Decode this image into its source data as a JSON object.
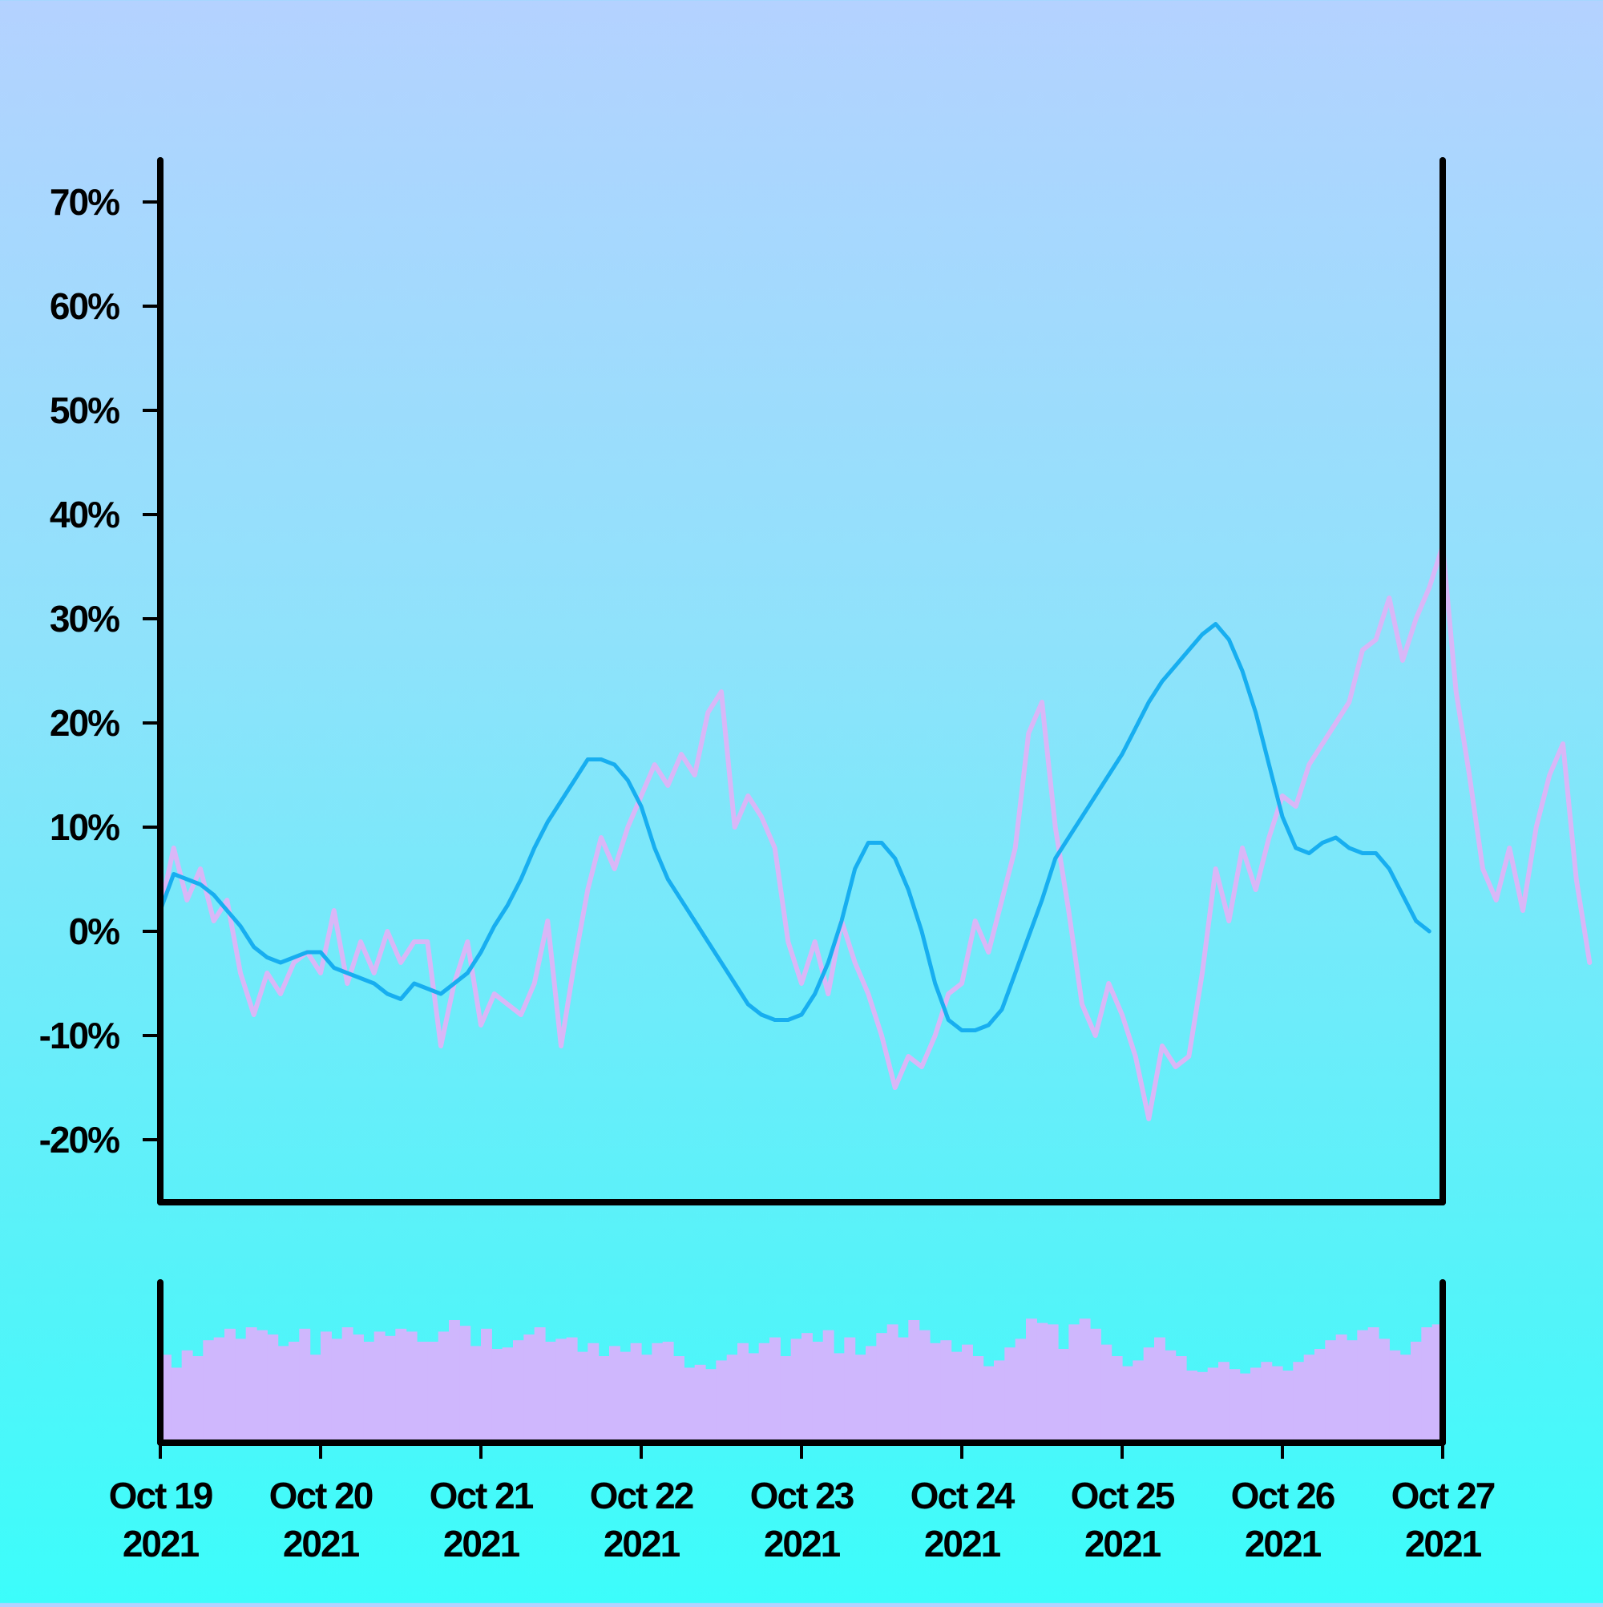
{
  "chart_data": {
    "type": "line",
    "x_start": "2021-10-19",
    "x_end": "2021-10-27",
    "x_tick_labels": [
      [
        "Oct 19",
        "2021"
      ],
      [
        "Oct 20",
        "2021"
      ],
      [
        "Oct 21",
        "2021"
      ],
      [
        "Oct 22",
        "2021"
      ],
      [
        "Oct 23",
        "2021"
      ],
      [
        "Oct 24",
        "2021"
      ],
      [
        "Oct 25",
        "2021"
      ],
      [
        "Oct 26",
        "2021"
      ],
      [
        "Oct 27",
        "2021"
      ]
    ],
    "y_ticks": [
      -20,
      -10,
      0,
      10,
      20,
      30,
      40,
      50,
      60,
      70
    ],
    "y_tick_labels": [
      "-20%",
      "-10%",
      "0%",
      "10%",
      "20%",
      "30%",
      "40%",
      "50%",
      "60%",
      "70%"
    ],
    "ylim": [
      -26,
      74
    ],
    "grid": false,
    "series": [
      {
        "kind": "raw",
        "color": "#d9b7f7",
        "points": [
          [
            "2021-10-19 00:00",
            2
          ],
          [
            "2021-10-19 02:00",
            8
          ],
          [
            "2021-10-19 04:00",
            3
          ],
          [
            "2021-10-19 06:00",
            6
          ],
          [
            "2021-10-19 08:00",
            1
          ],
          [
            "2021-10-19 10:00",
            3
          ],
          [
            "2021-10-19 12:00",
            -4
          ],
          [
            "2021-10-19 14:00",
            -8
          ],
          [
            "2021-10-19 16:00",
            -4
          ],
          [
            "2021-10-19 18:00",
            -6
          ],
          [
            "2021-10-19 20:00",
            -3
          ],
          [
            "2021-10-19 22:00",
            -2
          ],
          [
            "2021-10-20 00:00",
            -4
          ],
          [
            "2021-10-20 02:00",
            2
          ],
          [
            "2021-10-20 04:00",
            -5
          ],
          [
            "2021-10-20 06:00",
            -1
          ],
          [
            "2021-10-20 08:00",
            -4
          ],
          [
            "2021-10-20 10:00",
            0
          ],
          [
            "2021-10-20 12:00",
            -3
          ],
          [
            "2021-10-20 14:00",
            -1
          ],
          [
            "2021-10-20 16:00",
            -1
          ],
          [
            "2021-10-20 18:00",
            -11
          ],
          [
            "2021-10-20 20:00",
            -5
          ],
          [
            "2021-10-20 22:00",
            -1
          ],
          [
            "2021-10-21 00:00",
            -9
          ],
          [
            "2021-10-21 02:00",
            -6
          ],
          [
            "2021-10-21 04:00",
            -7
          ],
          [
            "2021-10-21 06:00",
            -8
          ],
          [
            "2021-10-21 08:00",
            -5
          ],
          [
            "2021-10-21 10:00",
            1
          ],
          [
            "2021-10-21 12:00",
            -11
          ],
          [
            "2021-10-21 14:00",
            -3
          ],
          [
            "2021-10-21 16:00",
            4
          ],
          [
            "2021-10-21 18:00",
            9
          ],
          [
            "2021-10-21 20:00",
            6
          ],
          [
            "2021-10-21 22:00",
            10
          ],
          [
            "2021-10-22 00:00",
            13
          ],
          [
            "2021-10-22 02:00",
            16
          ],
          [
            "2021-10-22 04:00",
            14
          ],
          [
            "2021-10-22 06:00",
            17
          ],
          [
            "2021-10-22 08:00",
            15
          ],
          [
            "2021-10-22 10:00",
            21
          ],
          [
            "2021-10-22 12:00",
            23
          ],
          [
            "2021-10-22 14:00",
            10
          ],
          [
            "2021-10-22 16:00",
            13
          ],
          [
            "2021-10-22 18:00",
            11
          ],
          [
            "2021-10-22 20:00",
            8
          ],
          [
            "2021-10-22 22:00",
            -1
          ],
          [
            "2021-10-23 00:00",
            -5
          ],
          [
            "2021-10-23 02:00",
            -1
          ],
          [
            "2021-10-23 04:00",
            -6
          ],
          [
            "2021-10-23 06:00",
            1
          ],
          [
            "2021-10-23 08:00",
            -3
          ],
          [
            "2021-10-23 10:00",
            -6
          ],
          [
            "2021-10-23 12:00",
            -10
          ],
          [
            "2021-10-23 14:00",
            -15
          ],
          [
            "2021-10-23 16:00",
            -12
          ],
          [
            "2021-10-23 18:00",
            -13
          ],
          [
            "2021-10-23 20:00",
            -10
          ],
          [
            "2021-10-23 22:00",
            -6
          ],
          [
            "2021-10-24 00:00",
            -5
          ],
          [
            "2021-10-24 02:00",
            1
          ],
          [
            "2021-10-24 04:00",
            -2
          ],
          [
            "2021-10-24 06:00",
            3
          ],
          [
            "2021-10-24 08:00",
            8
          ],
          [
            "2021-10-24 10:00",
            19
          ],
          [
            "2021-10-24 12:00",
            22
          ],
          [
            "2021-10-24 14:00",
            10
          ],
          [
            "2021-10-24 16:00",
            2
          ],
          [
            "2021-10-24 18:00",
            -7
          ],
          [
            "2021-10-24 20:00",
            -10
          ],
          [
            "2021-10-24 22:00",
            -5
          ],
          [
            "2021-10-25 00:00",
            -8
          ],
          [
            "2021-10-25 02:00",
            -12
          ],
          [
            "2021-10-25 04:00",
            -18
          ],
          [
            "2021-10-25 06:00",
            -11
          ],
          [
            "2021-10-25 08:00",
            -13
          ],
          [
            "2021-10-25 10:00",
            -12
          ],
          [
            "2021-10-25 12:00",
            -4
          ],
          [
            "2021-10-25 14:00",
            6
          ],
          [
            "2021-10-25 16:00",
            1
          ],
          [
            "2021-10-25 18:00",
            8
          ],
          [
            "2021-10-25 20:00",
            4
          ],
          [
            "2021-10-25 22:00",
            9
          ],
          [
            "2021-10-26 00:00",
            13
          ],
          [
            "2021-10-26 02:00",
            12
          ],
          [
            "2021-10-26 04:00",
            16
          ],
          [
            "2021-10-26 06:00",
            18
          ],
          [
            "2021-10-26 08:00",
            20
          ],
          [
            "2021-10-26 10:00",
            22
          ],
          [
            "2021-10-26 12:00",
            27
          ],
          [
            "2021-10-26 14:00",
            28
          ],
          [
            "2021-10-26 16:00",
            32
          ],
          [
            "2021-10-26 18:00",
            26
          ],
          [
            "2021-10-26 20:00",
            30
          ],
          [
            "2021-10-26 22:00",
            33
          ],
          [
            "2021-10-27 00:00",
            37
          ],
          [
            "2021-10-27 02:00",
            23
          ],
          [
            "2021-10-27 04:00",
            15
          ],
          [
            "2021-10-27 06:00",
            6
          ],
          [
            "2021-10-27 08:00",
            3
          ],
          [
            "2021-10-27 10:00",
            8
          ],
          [
            "2021-10-27 12:00",
            2
          ],
          [
            "2021-10-27 14:00",
            10
          ],
          [
            "2021-10-27 16:00",
            15
          ],
          [
            "2021-10-27 18:00",
            18
          ],
          [
            "2021-10-27 20:00",
            5
          ],
          [
            "2021-10-27 22:00",
            -3
          ]
        ]
      },
      {
        "kind": "smoothed",
        "color": "#17aef0",
        "points": [
          [
            "2021-10-19 00:00",
            2
          ],
          [
            "2021-10-19 02:00",
            5.5
          ],
          [
            "2021-10-19 04:00",
            5
          ],
          [
            "2021-10-19 06:00",
            4.5
          ],
          [
            "2021-10-19 08:00",
            3.5
          ],
          [
            "2021-10-19 10:00",
            2
          ],
          [
            "2021-10-19 12:00",
            0.5
          ],
          [
            "2021-10-19 14:00",
            -1.5
          ],
          [
            "2021-10-19 16:00",
            -2.5
          ],
          [
            "2021-10-19 18:00",
            -3
          ],
          [
            "2021-10-19 20:00",
            -2.5
          ],
          [
            "2021-10-19 22:00",
            -2
          ],
          [
            "2021-10-20 00:00",
            -2
          ],
          [
            "2021-10-20 02:00",
            -3.5
          ],
          [
            "2021-10-20 04:00",
            -4
          ],
          [
            "2021-10-20 06:00",
            -4.5
          ],
          [
            "2021-10-20 08:00",
            -5
          ],
          [
            "2021-10-20 10:00",
            -6
          ],
          [
            "2021-10-20 12:00",
            -6.5
          ],
          [
            "2021-10-20 14:00",
            -5
          ],
          [
            "2021-10-20 16:00",
            -5.5
          ],
          [
            "2021-10-20 18:00",
            -6
          ],
          [
            "2021-10-20 20:00",
            -5
          ],
          [
            "2021-10-20 22:00",
            -4
          ],
          [
            "2021-10-21 00:00",
            -2
          ],
          [
            "2021-10-21 02:00",
            0.5
          ],
          [
            "2021-10-21 04:00",
            2.5
          ],
          [
            "2021-10-21 06:00",
            5
          ],
          [
            "2021-10-21 08:00",
            8
          ],
          [
            "2021-10-21 10:00",
            10.5
          ],
          [
            "2021-10-21 12:00",
            12.5
          ],
          [
            "2021-10-21 14:00",
            14.5
          ],
          [
            "2021-10-21 16:00",
            16.5
          ],
          [
            "2021-10-21 18:00",
            16.5
          ],
          [
            "2021-10-21 20:00",
            16
          ],
          [
            "2021-10-21 22:00",
            14.5
          ],
          [
            "2021-10-22 00:00",
            12
          ],
          [
            "2021-10-22 02:00",
            8
          ],
          [
            "2021-10-22 04:00",
            5
          ],
          [
            "2021-10-22 06:00",
            3
          ],
          [
            "2021-10-22 08:00",
            1
          ],
          [
            "2021-10-22 10:00",
            -1
          ],
          [
            "2021-10-22 12:00",
            -3
          ],
          [
            "2021-10-22 14:00",
            -5
          ],
          [
            "2021-10-22 16:00",
            -7
          ],
          [
            "2021-10-22 18:00",
            -8
          ],
          [
            "2021-10-22 20:00",
            -8.5
          ],
          [
            "2021-10-22 22:00",
            -8.5
          ],
          [
            "2021-10-23 00:00",
            -8
          ],
          [
            "2021-10-23 02:00",
            -6
          ],
          [
            "2021-10-23 04:00",
            -3
          ],
          [
            "2021-10-23 06:00",
            1
          ],
          [
            "2021-10-23 08:00",
            6
          ],
          [
            "2021-10-23 10:00",
            8.5
          ],
          [
            "2021-10-23 12:00",
            8.5
          ],
          [
            "2021-10-23 14:00",
            7
          ],
          [
            "2021-10-23 16:00",
            4
          ],
          [
            "2021-10-23 18:00",
            0
          ],
          [
            "2021-10-23 20:00",
            -5
          ],
          [
            "2021-10-23 22:00",
            -8.5
          ],
          [
            "2021-10-24 00:00",
            -9.5
          ],
          [
            "2021-10-24 02:00",
            -9.5
          ],
          [
            "2021-10-24 04:00",
            -9
          ],
          [
            "2021-10-24 06:00",
            -7.5
          ],
          [
            "2021-10-24 08:00",
            -4
          ],
          [
            "2021-10-24 10:00",
            -0.5
          ],
          [
            "2021-10-24 12:00",
            3
          ],
          [
            "2021-10-24 14:00",
            7
          ],
          [
            "2021-10-24 16:00",
            9
          ],
          [
            "2021-10-24 18:00",
            11
          ],
          [
            "2021-10-24 20:00",
            13
          ],
          [
            "2021-10-24 22:00",
            15
          ],
          [
            "2021-10-25 00:00",
            17
          ],
          [
            "2021-10-25 02:00",
            19.5
          ],
          [
            "2021-10-25 04:00",
            22
          ],
          [
            "2021-10-25 06:00",
            24
          ],
          [
            "2021-10-25 08:00",
            25.5
          ],
          [
            "2021-10-25 10:00",
            27
          ],
          [
            "2021-10-25 12:00",
            28.5
          ],
          [
            "2021-10-25 14:00",
            29.5
          ],
          [
            "2021-10-25 16:00",
            28
          ],
          [
            "2021-10-25 18:00",
            25
          ],
          [
            "2021-10-25 20:00",
            21
          ],
          [
            "2021-10-25 22:00",
            16
          ],
          [
            "2021-10-26 00:00",
            11
          ],
          [
            "2021-10-26 02:00",
            8
          ],
          [
            "2021-10-26 04:00",
            7.5
          ],
          [
            "2021-10-26 06:00",
            8.5
          ],
          [
            "2021-10-26 08:00",
            9
          ],
          [
            "2021-10-26 10:00",
            8
          ],
          [
            "2021-10-26 12:00",
            7.5
          ],
          [
            "2021-10-26 14:00",
            7.5
          ],
          [
            "2021-10-26 16:00",
            6
          ],
          [
            "2021-10-26 18:00",
            3.5
          ],
          [
            "2021-10-26 20:00",
            1
          ],
          [
            "2021-10-26 22:00",
            0
          ]
        ]
      }
    ],
    "volume": {
      "color": "#cfb7fd",
      "values": [
        0.61,
        0.52,
        0.64,
        0.6,
        0.71,
        0.73,
        0.79,
        0.72,
        0.8,
        0.78,
        0.75,
        0.67,
        0.7,
        0.79,
        0.61,
        0.77,
        0.72,
        0.8,
        0.75,
        0.7,
        0.77,
        0.74,
        0.79,
        0.77,
        0.7,
        0.7,
        0.77,
        0.85,
        0.81,
        0.67,
        0.79,
        0.65,
        0.66,
        0.71,
        0.75,
        0.8,
        0.7,
        0.72,
        0.73,
        0.63,
        0.69,
        0.6,
        0.67,
        0.63,
        0.69,
        0.61,
        0.69,
        0.7,
        0.6,
        0.52,
        0.54,
        0.51,
        0.57,
        0.61,
        0.69,
        0.62,
        0.69,
        0.73,
        0.6,
        0.72,
        0.76,
        0.7,
        0.78,
        0.62,
        0.73,
        0.61,
        0.67,
        0.76,
        0.82,
        0.73,
        0.85,
        0.78,
        0.69,
        0.71,
        0.63,
        0.68,
        0.6,
        0.53,
        0.57,
        0.66,
        0.72,
        0.86,
        0.83,
        0.82,
        0.65,
        0.82,
        0.86,
        0.79,
        0.68,
        0.6,
        0.53,
        0.57,
        0.66,
        0.73,
        0.64,
        0.6,
        0.5,
        0.49,
        0.52,
        0.56,
        0.51,
        0.48,
        0.52,
        0.56,
        0.53,
        0.5,
        0.56,
        0.61,
        0.65,
        0.71,
        0.75,
        0.71,
        0.78,
        0.8,
        0.72,
        0.64,
        0.61,
        0.7,
        0.8,
        0.82
      ]
    }
  }
}
